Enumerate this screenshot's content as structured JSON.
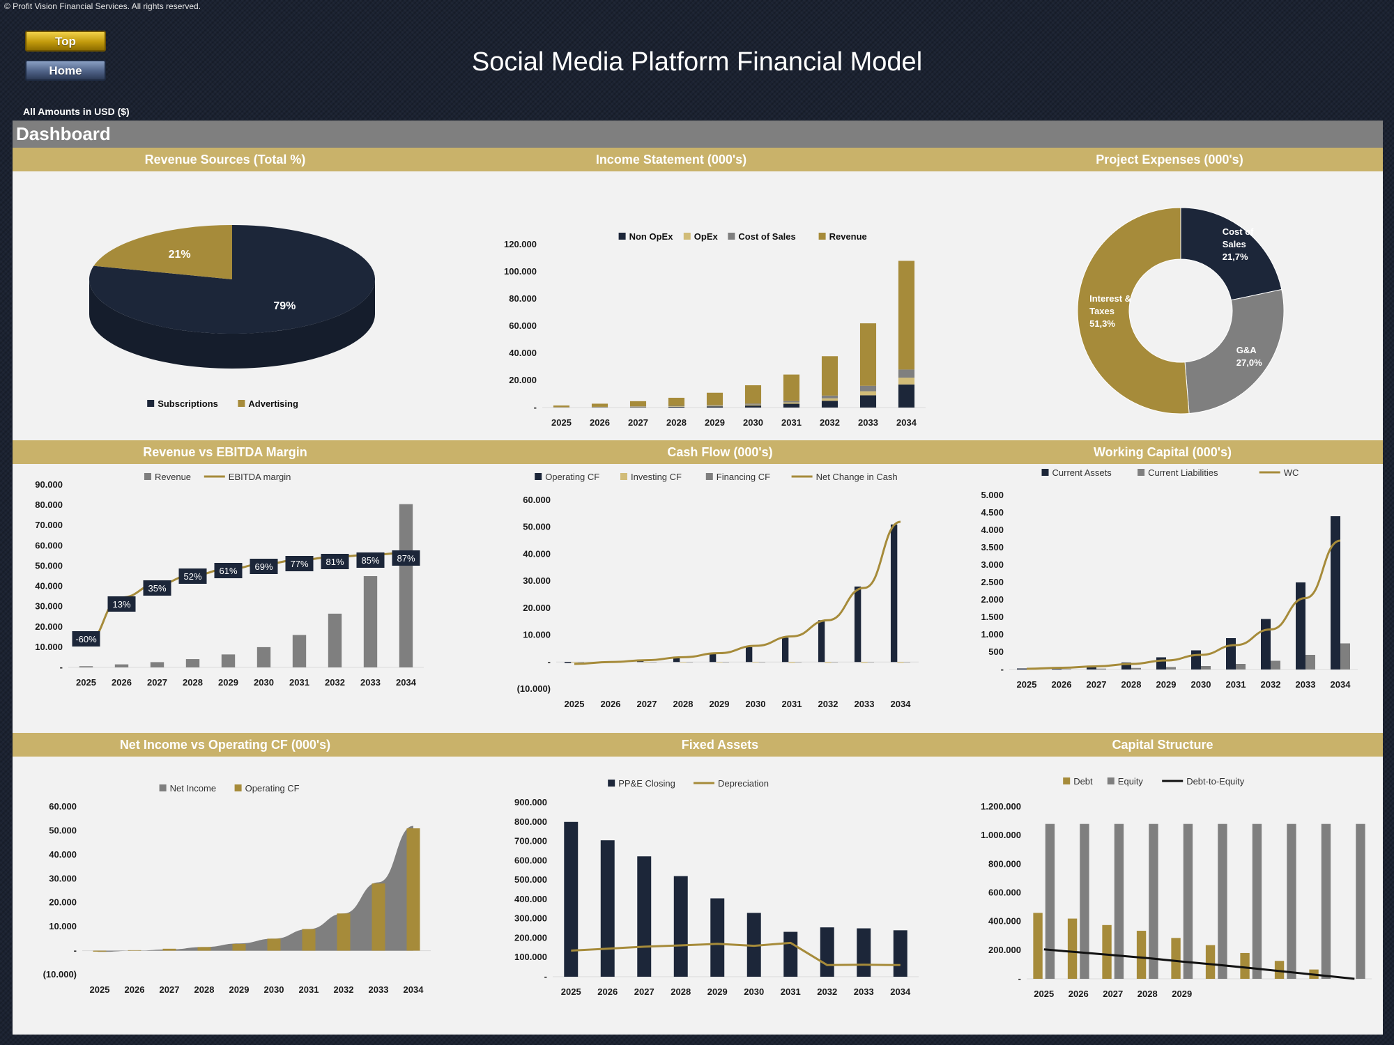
{
  "header": {
    "copyright": "© Profit Vision Financial Services. All rights reserved.",
    "title": "Social Media Platform Financial Model",
    "amounts_note": "All Amounts in  USD ($)",
    "top_label": "Top",
    "home_label": "Home",
    "dashboard_label": "Dashboard"
  },
  "colors": {
    "navy": "#1c2639",
    "gold": "#a68b3a",
    "light_gold": "#d1bc78",
    "gray": "#7f7f7f",
    "band": "#c9b26a",
    "panel": "#f2f2f2"
  },
  "sections": {
    "revenue_sources": "Revenue Sources (Total %)",
    "income_statement": "Income Statement (000's)",
    "project_expenses": "Project Expenses (000's)",
    "revenue_ebitda": "Revenue vs EBITDA Margin",
    "cash_flow": "Cash Flow (000's)",
    "working_capital": "Working Capital (000's)",
    "net_income_ocf": "Net Income vs Operating CF (000's)",
    "fixed_assets": "Fixed Assets",
    "capital_structure": "Capital Structure"
  },
  "chart_data": [
    {
      "id": "revenue_sources",
      "type": "pie",
      "labels": [
        "Subscriptions",
        "Advertising"
      ],
      "values": [
        79,
        21
      ],
      "data_labels": [
        "79%",
        "21%"
      ],
      "colors": [
        "#1c2639",
        "#a68b3a"
      ],
      "style": "3d",
      "legend": "bottom"
    },
    {
      "id": "income_statement",
      "type": "bar",
      "stacked": true,
      "categories": [
        "2025",
        "2026",
        "2027",
        "2028",
        "2029",
        "2030",
        "2031",
        "2032",
        "2033",
        "2034"
      ],
      "series": [
        {
          "name": "Non OpEx",
          "color": "#1c2639",
          "values": [
            120,
            200,
            350,
            550,
            900,
            1500,
            2800,
            5000,
            9000,
            17000
          ]
        },
        {
          "name": "OpEx",
          "color": "#d1bc78",
          "values": [
            100,
            200,
            300,
            400,
            500,
            700,
            1000,
            1800,
            3000,
            5000
          ]
        },
        {
          "name": "Cost of Sales",
          "color": "#7f7f7f",
          "values": [
            80,
            150,
            250,
            350,
            500,
            700,
            1000,
            2000,
            4000,
            6000
          ]
        },
        {
          "name": "Revenue",
          "color": "#a68b3a",
          "values": [
            1200,
            2300,
            3800,
            5900,
            9000,
            13500,
            19500,
            29000,
            46000,
            80000
          ]
        }
      ],
      "ylim": [
        0,
        120000
      ],
      "yticks": [
        "-",
        "20.000",
        "40.000",
        "60.000",
        "80.000",
        "100.000",
        "120.000"
      ],
      "legend": "top"
    },
    {
      "id": "project_expenses",
      "type": "pie",
      "style": "donut",
      "labels": [
        "Cost of Sales",
        "G&A",
        "Interest & Taxes"
      ],
      "values": [
        21.7,
        27.0,
        51.3
      ],
      "data_labels": [
        [
          "Cost of",
          "Sales",
          "21,7%"
        ],
        [
          "G&A",
          "27,0%"
        ],
        [
          "Interest &",
          "Taxes",
          "51,3%"
        ]
      ],
      "colors": [
        "#1c2639",
        "#7f7f7f",
        "#a68b3a"
      ]
    },
    {
      "id": "revenue_ebitda",
      "type": "bar+line",
      "categories": [
        "2025",
        "2026",
        "2027",
        "2028",
        "2029",
        "2030",
        "2031",
        "2032",
        "2033",
        "2034"
      ],
      "series": [
        {
          "name": "Revenue",
          "color": "#7f7f7f",
          "values": [
            600,
            1500,
            2600,
            4100,
            6400,
            10000,
            16000,
            26500,
            45000,
            80500
          ]
        },
        {
          "name": "EBITDA margin",
          "color": "#a68b3a",
          "line_values": [
            12000,
            34500,
            41000,
            45500,
            48500,
            51000,
            53000,
            54500,
            55500,
            56500
          ],
          "labels": [
            "-60%",
            "13%",
            "35%",
            "52%",
            "61%",
            "69%",
            "77%",
            "81%",
            "85%",
            "87%"
          ]
        }
      ],
      "ylim": [
        0,
        90000
      ],
      "yticks": [
        "-",
        "10.000",
        "20.000",
        "30.000",
        "40.000",
        "50.000",
        "60.000",
        "70.000",
        "80.000",
        "90.000"
      ],
      "legend": "top"
    },
    {
      "id": "cash_flow",
      "type": "bar+line",
      "categories": [
        "2025",
        "2026",
        "2027",
        "2028",
        "2029",
        "2030",
        "2031",
        "2032",
        "2033",
        "2034"
      ],
      "series": [
        {
          "name": "Operating CF",
          "color": "#1c2639",
          "values": [
            -400,
            200,
            800,
            1500,
            3000,
            5500,
            9000,
            15500,
            28000,
            51000
          ]
        },
        {
          "name": "Investing CF",
          "color": "#d1bc78",
          "values": [
            -200,
            -200,
            -200,
            -200,
            -200,
            -200,
            -300,
            -300,
            -300,
            -300
          ]
        },
        {
          "name": "Financing CF",
          "color": "#7f7f7f",
          "values": [
            0,
            0,
            0,
            0,
            0,
            0,
            0,
            0,
            0,
            0
          ]
        },
        {
          "name": "Net Change in Cash",
          "color": "#a68b3a",
          "line_values": [
            -700,
            0,
            700,
            1800,
            3300,
            6000,
            9500,
            15500,
            27500,
            52000
          ]
        }
      ],
      "ylim": [
        -10000,
        60000
      ],
      "yticks": [
        "(10.000)",
        "-",
        "10.000",
        "20.000",
        "30.000",
        "40.000",
        "50.000",
        "60.000"
      ],
      "legend": "top"
    },
    {
      "id": "working_capital",
      "type": "bar+line",
      "categories": [
        "2025",
        "2026",
        "2027",
        "2028",
        "2029",
        "2030",
        "2031",
        "2032",
        "2033",
        "2034"
      ],
      "series": [
        {
          "name": "Current Assets",
          "color": "#1c2639",
          "values": [
            30,
            50,
            100,
            200,
            350,
            550,
            900,
            1450,
            2500,
            4400
          ]
        },
        {
          "name": "Current Liabilities",
          "color": "#7f7f7f",
          "values": [
            10,
            15,
            25,
            45,
            70,
            100,
            160,
            250,
            420,
            750
          ]
        },
        {
          "name": "WC",
          "color": "#a68b3a",
          "line_values": [
            20,
            50,
            90,
            160,
            260,
            420,
            700,
            1150,
            2050,
            3700
          ]
        }
      ],
      "ylim": [
        0,
        5000
      ],
      "yticks": [
        "-",
        "500",
        "1.000",
        "1.500",
        "2.000",
        "2.500",
        "3.000",
        "3.500",
        "4.000",
        "4.500",
        "5.000"
      ],
      "legend": "top"
    },
    {
      "id": "net_income_ocf",
      "type": "area+bar",
      "categories": [
        "2025",
        "2026",
        "2027",
        "2028",
        "2029",
        "2030",
        "2031",
        "2032",
        "2033",
        "2034"
      ],
      "series": [
        {
          "name": "Net Income",
          "color": "#7f7f7f",
          "values": [
            -500,
            0,
            500,
            1500,
            3000,
            5000,
            9000,
            15500,
            28500,
            52000
          ]
        },
        {
          "name": "Operating CF",
          "color": "#a68b3a",
          "values": [
            -400,
            200,
            800,
            1500,
            2800,
            5000,
            9000,
            15500,
            28000,
            51000
          ]
        }
      ],
      "ylim": [
        -10000,
        60000
      ],
      "yticks": [
        "(10.000)",
        "-",
        "10.000",
        "20.000",
        "30.000",
        "40.000",
        "50.000",
        "60.000"
      ],
      "legend": "top"
    },
    {
      "id": "fixed_assets",
      "type": "bar+line",
      "categories": [
        "2025",
        "2026",
        "2027",
        "2028",
        "2029",
        "2030",
        "2031",
        "2032",
        "2033",
        "2034"
      ],
      "series": [
        {
          "name": "PP&E Closing",
          "color": "#1c2639",
          "values": [
            800000,
            705000,
            622000,
            520000,
            405000,
            330000,
            232000,
            255000,
            250000,
            240000
          ]
        },
        {
          "name": "Depreciation",
          "color": "#a68b3a",
          "line_values": [
            135000,
            145000,
            155000,
            162000,
            170000,
            160000,
            175000,
            60000,
            62000,
            60000
          ]
        }
      ],
      "ylim": [
        0,
        900000
      ],
      "yticks": [
        "-",
        "100.000",
        "200.000",
        "300.000",
        "400.000",
        "500.000",
        "600.000",
        "700.000",
        "800.000",
        "900.000"
      ],
      "legend": "top"
    },
    {
      "id": "capital_structure",
      "type": "bar+line",
      "categories": [
        "2025",
        "2026",
        "2027",
        "2028",
        "2029",
        "",
        "",
        "",
        "",
        ""
      ],
      "series": [
        {
          "name": "Debt",
          "color": "#a68b3a",
          "values": [
            460000,
            420000,
            375000,
            335000,
            285000,
            235000,
            180000,
            125000,
            65000,
            0
          ]
        },
        {
          "name": "Equity",
          "color": "#7f7f7f",
          "values": [
            1080000,
            1080000,
            1080000,
            1080000,
            1080000,
            1080000,
            1080000,
            1080000,
            1080000,
            1080000
          ]
        },
        {
          "name": "Debt-to-Equity",
          "color": "#111111",
          "line_values": [
            205000,
            185000,
            165000,
            145000,
            120000,
            98000,
            75000,
            50000,
            25000,
            0
          ]
        }
      ],
      "ylim": [
        0,
        1200000
      ],
      "yticks": [
        "-",
        "200.000",
        "400.000",
        "600.000",
        "800.000",
        "1.000.000",
        "1.200.000"
      ],
      "legend": "top"
    }
  ]
}
